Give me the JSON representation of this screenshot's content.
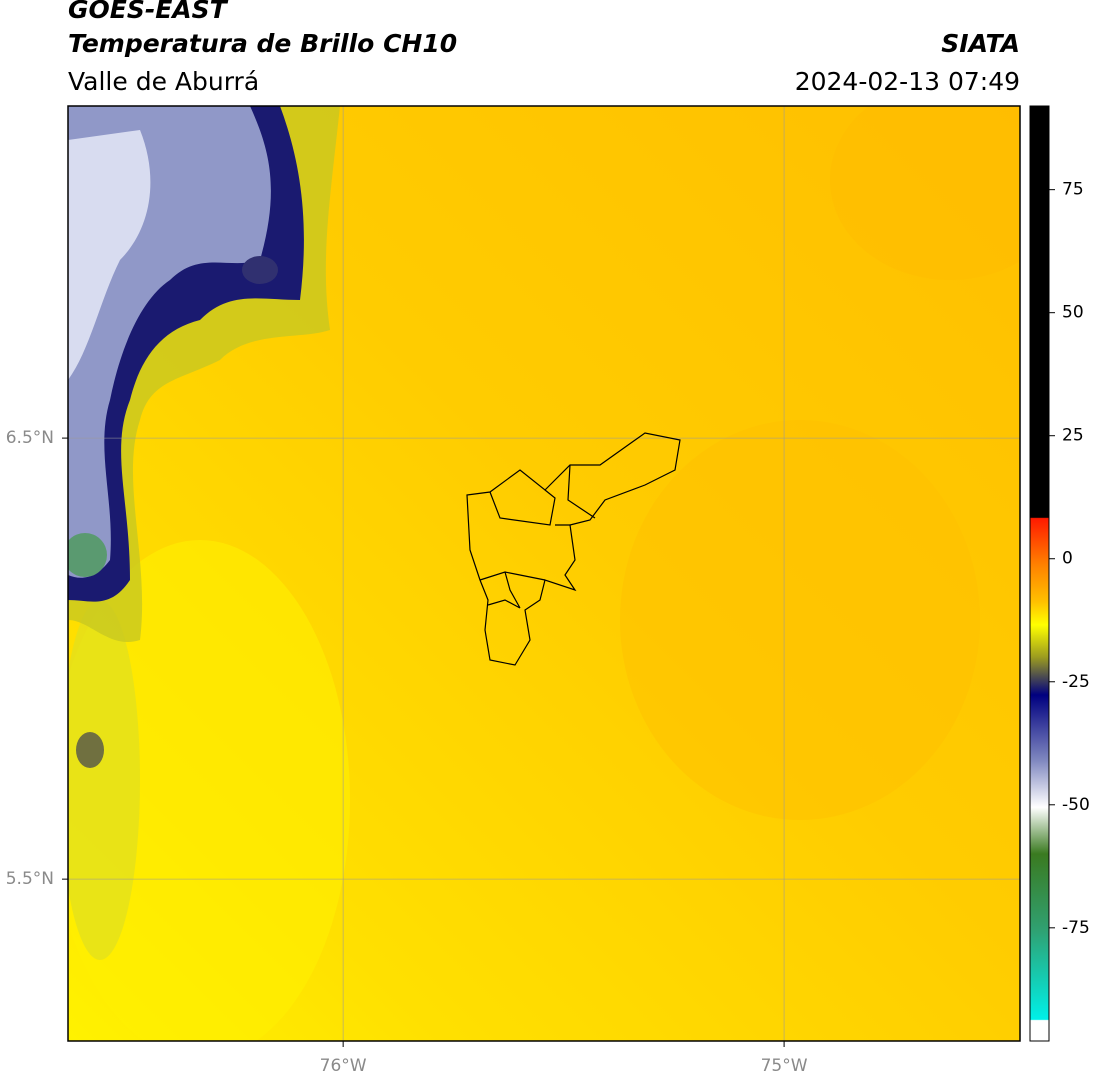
{
  "header": {
    "title": "GOES-EAST",
    "subtitle": "Temperatura de Brillo CH10",
    "source": "SIATA",
    "region": "Valle de Aburrá",
    "datetime": "2024-02-13 07:49"
  },
  "map": {
    "xlim": [
      -76.624,
      -74.465
    ],
    "ylim": [
      5.133,
      7.253
    ],
    "xticks": [
      {
        "value": -76,
        "label": "76°W"
      },
      {
        "value": -75,
        "label": "75°W"
      }
    ],
    "yticks": [
      {
        "value": 6.5,
        "label": "6.5°N"
      },
      {
        "value": 5.5,
        "label": "5.5°N"
      }
    ]
  },
  "colorbar": {
    "lim": [
      -98,
      92
    ],
    "ticks": [
      75,
      50,
      25,
      0,
      -25,
      -50,
      -75
    ]
  }
}
